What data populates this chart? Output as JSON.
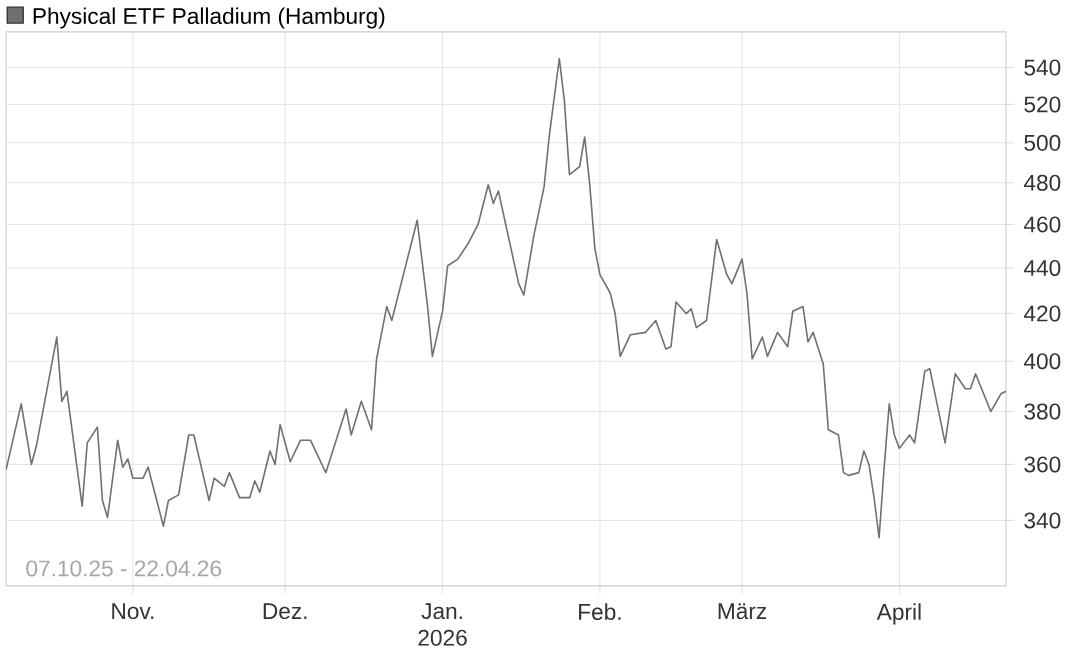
{
  "chart_data": {
    "type": "line",
    "x": [
      "2025-10-07",
      "2025-10-10",
      "2025-10-12",
      "2025-10-13",
      "2025-10-17",
      "2025-10-18",
      "2025-10-19",
      "2025-10-22",
      "2025-10-23",
      "2025-10-25",
      "2025-10-26",
      "2025-10-27",
      "2025-10-29",
      "2025-10-30",
      "2025-10-31",
      "2025-11-01",
      "2025-11-03",
      "2025-11-04",
      "2025-11-07",
      "2025-11-08",
      "2025-11-10",
      "2025-11-12",
      "2025-11-13",
      "2025-11-16",
      "2025-11-17",
      "2025-11-19",
      "2025-11-20",
      "2025-11-22",
      "2025-11-24",
      "2025-11-25",
      "2025-11-26",
      "2025-11-28",
      "2025-11-29",
      "2025-11-30",
      "2025-12-02",
      "2025-12-04",
      "2025-12-06",
      "2025-12-09",
      "2025-12-13",
      "2025-12-14",
      "2025-12-16",
      "2025-12-18",
      "2025-12-19",
      "2025-12-21",
      "2025-12-22",
      "2025-12-27",
      "2025-12-29",
      "2025-12-30",
      "2026-01-01",
      "2026-01-02",
      "2026-01-04",
      "2026-01-06",
      "2026-01-08",
      "2026-01-10",
      "2026-01-11",
      "2026-01-12",
      "2026-01-16",
      "2026-01-17",
      "2026-01-19",
      "2026-01-21",
      "2026-01-22",
      "2026-01-24",
      "2026-01-25",
      "2026-01-26",
      "2026-01-28",
      "2026-01-29",
      "2026-01-30",
      "2026-01-31",
      "2026-02-01",
      "2026-02-03",
      "2026-02-04",
      "2026-02-05",
      "2026-02-07",
      "2026-02-10",
      "2026-02-12",
      "2026-02-14",
      "2026-02-15",
      "2026-02-16",
      "2026-02-18",
      "2026-02-19",
      "2026-02-20",
      "2026-02-22",
      "2026-02-24",
      "2026-02-26",
      "2026-02-27",
      "2026-03-01",
      "2026-03-02",
      "2026-03-03",
      "2026-03-05",
      "2026-03-06",
      "2026-03-08",
      "2026-03-10",
      "2026-03-11",
      "2026-03-13",
      "2026-03-14",
      "2026-03-15",
      "2026-03-17",
      "2026-03-18",
      "2026-03-20",
      "2026-03-21",
      "2026-03-22",
      "2026-03-24",
      "2026-03-25",
      "2026-03-26",
      "2026-03-27",
      "2026-03-28",
      "2026-03-29",
      "2026-03-30",
      "2026-03-31",
      "2026-04-01",
      "2026-04-03",
      "2026-04-04",
      "2026-04-06",
      "2026-04-07",
      "2026-04-10",
      "2026-04-12",
      "2026-04-14",
      "2026-04-15",
      "2026-04-16",
      "2026-04-19",
      "2026-04-21",
      "2026-04-22"
    ],
    "series": [
      {
        "name": "Physical ETF Palladium (Hamburg)",
        "color": "#707070",
        "values": [
          358,
          383,
          360,
          367,
          410,
          384,
          388,
          345,
          368,
          374,
          347,
          341,
          369,
          359,
          362,
          355,
          355,
          359,
          338,
          347,
          349,
          371,
          371,
          347,
          355,
          352,
          357,
          348,
          348,
          354,
          350,
          365,
          360,
          375,
          361,
          369,
          369,
          357,
          381,
          371,
          384,
          373,
          401,
          423,
          417,
          462,
          424,
          402,
          421,
          441,
          444,
          451,
          460,
          479,
          470,
          476,
          433,
          428,
          455,
          478,
          503,
          545,
          522,
          484,
          488,
          503,
          479,
          449,
          437,
          429,
          420,
          402,
          411,
          412,
          417,
          405,
          406,
          425,
          420,
          422,
          414,
          417,
          453,
          437,
          433,
          444,
          428,
          401,
          410,
          402,
          412,
          406,
          421,
          423,
          408,
          412,
          399,
          373,
          371,
          357,
          356,
          357,
          365,
          360,
          348,
          334,
          359,
          383,
          371,
          366,
          371,
          368,
          396,
          397,
          368,
          395,
          389,
          389,
          395,
          380,
          387,
          388
        ]
      }
    ],
    "xlim": [
      "2025-10-07",
      "2026-04-22"
    ],
    "xticks": [
      {
        "value": "2025-11-01",
        "label": "Nov."
      },
      {
        "value": "2025-12-01",
        "label": "Dez."
      },
      {
        "value": "2026-01-01",
        "label": "Jan. 2026"
      },
      {
        "value": "2026-02-01",
        "label": "Feb."
      },
      {
        "value": "2026-03-01",
        "label": "März"
      },
      {
        "value": "2026-04-01",
        "label": "April"
      }
    ],
    "ylim": [
      318,
      560
    ],
    "yticks": [
      340,
      360,
      380,
      400,
      420,
      440,
      460,
      480,
      500,
      520,
      540
    ],
    "log": true,
    "grid": true,
    "legend": "top left",
    "annotations": [
      "07.10.25 - 22.04.26"
    ]
  }
}
